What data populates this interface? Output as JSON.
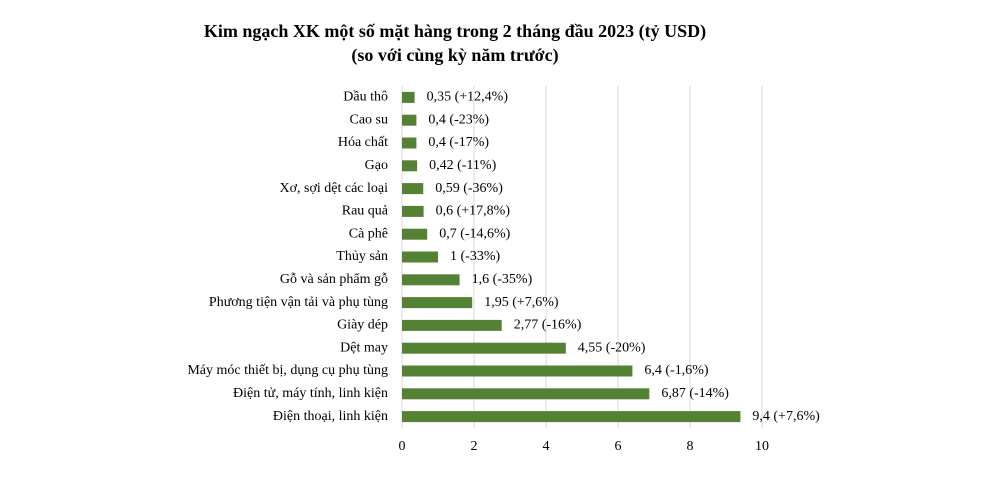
{
  "chart_data": {
    "type": "hbar",
    "title": "Kim ngạch XK một số mặt hàng trong 2 tháng đầu 2023 (tỷ USD)",
    "subtitle": "(so với cùng kỳ năm trước)",
    "categories": [
      "Dầu thô",
      "Cao su",
      "Hóa chất",
      "Gạo",
      "Xơ, sợi dệt các loại",
      "Rau quả",
      "Cà phê",
      "Thủy sản",
      "Gỗ và sản phẩm gỗ",
      "Phương tiện vận tải và phụ tùng",
      "Giày dép",
      "Dệt may",
      "Máy móc thiết bị, dụng cụ phụ tùng",
      "Điện tử, máy tính, linh kiện",
      "Điện thoại, linh kiện"
    ],
    "values": [
      0.35,
      0.4,
      0.4,
      0.42,
      0.59,
      0.6,
      0.7,
      1,
      1.6,
      1.95,
      2.77,
      4.55,
      6.4,
      6.87,
      9.4
    ],
    "value_labels": [
      "0,35 (+12,4%)",
      "0,4 (-23%)",
      "0,4 (-17%)",
      "0,42 (-11%)",
      "0,59 (-36%)",
      "0,6 (+17,8%)",
      "0,7 (-14,6%)",
      "1 (-33%)",
      "1,6 (-35%)",
      "1,95 (+7,6%)",
      "2,77 (-16%)",
      "4,55 (-20%)",
      "6,4 (-1,6%)",
      "6,87 (-14%)",
      "9,4 (+7,6%)"
    ],
    "color": "#548235",
    "xlim": [
      0,
      10
    ],
    "xticks": [
      0,
      2,
      4,
      6,
      8,
      10
    ],
    "grid": true
  }
}
